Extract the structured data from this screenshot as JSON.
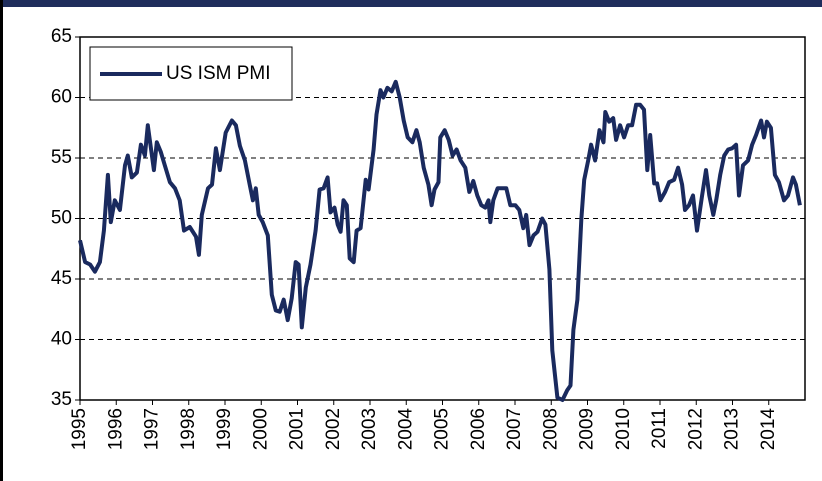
{
  "chart_data": {
    "type": "line",
    "legend": "upper left",
    "grid": true,
    "xlim": [
      1995,
      2015
    ],
    "ylim": [
      35,
      65
    ],
    "xticks": [
      1995,
      1996,
      1997,
      1998,
      1999,
      2000,
      2001,
      2002,
      2003,
      2004,
      2005,
      2006,
      2007,
      2008,
      2009,
      2010,
      2011,
      2012,
      2013,
      2014
    ],
    "yticks": [
      35,
      40,
      45,
      50,
      55,
      60,
      65
    ],
    "x": [
      1995,
      1995.14,
      1995.28,
      1995.41,
      1995.55,
      1995.66,
      1995.77,
      1995.85,
      1995.96,
      1996.1,
      1996.24,
      1996.32,
      1996.43,
      1996.57,
      1996.68,
      1996.79,
      1996.87,
      1996.96,
      1997.04,
      1997.12,
      1997.23,
      1997.34,
      1997.48,
      1997.62,
      1997.75,
      1997.87,
      1998.03,
      1998.2,
      1998.28,
      1998.36,
      1998.53,
      1998.64,
      1998.75,
      1998.86,
      1999.02,
      1999.19,
      1999.3,
      1999.41,
      1999.55,
      1999.68,
      1999.77,
      1999.85,
      1999.93,
      2000.04,
      2000.18,
      2000.29,
      2000.4,
      2000.51,
      2000.62,
      2000.73,
      2000.84,
      2000.95,
      2001.03,
      2001.12,
      2001.23,
      2001.36,
      2001.5,
      2001.61,
      2001.72,
      2001.83,
      2001.91,
      2002.02,
      2002.11,
      2002.19,
      2002.27,
      2002.36,
      2002.44,
      2002.55,
      2002.63,
      2002.74,
      2002.88,
      2002.96,
      2003.1,
      2003.18,
      2003.29,
      2003.37,
      2003.48,
      2003.6,
      2003.71,
      2003.82,
      2003.93,
      2004.04,
      2004.17,
      2004.28,
      2004.37,
      2004.48,
      2004.61,
      2004.7,
      2004.78,
      2004.89,
      2004.94,
      2005.06,
      2005.17,
      2005.28,
      2005.39,
      2005.5,
      2005.63,
      2005.74,
      2005.85,
      2005.96,
      2006.07,
      2006.18,
      2006.27,
      2006.32,
      2006.4,
      2006.52,
      2006.63,
      2006.76,
      2006.87,
      2007.01,
      2007.12,
      2007.23,
      2007.31,
      2007.4,
      2007.51,
      2007.62,
      2007.75,
      2007.84,
      2007.95,
      2008.03,
      2008.17,
      2008.31,
      2008.44,
      2008.53,
      2008.61,
      2008.72,
      2008.83,
      2008.91,
      2009.02,
      2009.1,
      2009.21,
      2009.33,
      2009.44,
      2009.49,
      2009.6,
      2009.71,
      2009.79,
      2009.9,
      2010.01,
      2010.12,
      2010.23,
      2010.34,
      2010.45,
      2010.56,
      2010.65,
      2010.73,
      2010.84,
      2010.92,
      2011.01,
      2011.14,
      2011.25,
      2011.39,
      2011.5,
      2011.61,
      2011.69,
      2011.8,
      2011.91,
      2012.02,
      2012.16,
      2012.27,
      2012.36,
      2012.47,
      2012.55,
      2012.66,
      2012.77,
      2012.88,
      2012.99,
      2013.1,
      2013.18,
      2013.29,
      2013.43,
      2013.54,
      2013.65,
      2013.79,
      2013.87,
      2013.95,
      2014.06,
      2014.17,
      2014.28,
      2014.42,
      2014.53,
      2014.67,
      2014.75,
      2014.86
    ],
    "series": [
      {
        "name": "US ISM PMI",
        "color": "#1a2a5e",
        "values": [
          48.2,
          46.4,
          46.2,
          45.6,
          46.4,
          49,
          53.6,
          49.7,
          51.5,
          50.7,
          54.4,
          55.2,
          53.4,
          53.8,
          56.1,
          55.2,
          57.7,
          55.7,
          54,
          56.3,
          55.5,
          54.4,
          53,
          52.5,
          51.5,
          49,
          49.3,
          48.5,
          47,
          50.3,
          52.5,
          52.8,
          55.8,
          54,
          57.1,
          58.1,
          57.7,
          56,
          54.8,
          52.8,
          51.5,
          52.5,
          50.3,
          49.7,
          48.6,
          43.7,
          42.4,
          42.3,
          43.3,
          41.6,
          43.4,
          46.4,
          46.2,
          41,
          44.3,
          46.2,
          49,
          52.4,
          52.5,
          53.4,
          50.5,
          50.9,
          49.5,
          48.9,
          51.5,
          51.1,
          46.7,
          46.4,
          49,
          49.2,
          53.2,
          52.4,
          55.7,
          58.6,
          60.6,
          60,
          60.8,
          60.5,
          61.3,
          60,
          58.1,
          56.7,
          56.3,
          57.3,
          56.3,
          54.2,
          52.8,
          51.1,
          52.4,
          53,
          56.7,
          57.3,
          56.5,
          55.2,
          55.7,
          54.8,
          54.2,
          52.2,
          53.1,
          51.9,
          51.1,
          50.9,
          51.5,
          49.7,
          51.5,
          52.5,
          52.5,
          52.5,
          51.1,
          51.1,
          50.7,
          49.2,
          50.3,
          47.8,
          48.6,
          48.9,
          50,
          49.5,
          45.8,
          39.1,
          35.2,
          35,
          35.8,
          36.2,
          40.8,
          43.3,
          49.9,
          53.2,
          54.8,
          56.1,
          54.8,
          57.3,
          56.3,
          58.8,
          58,
          58.3,
          56.5,
          57.7,
          56.7,
          57.7,
          57.7,
          59.4,
          59.4,
          59,
          54,
          56.9,
          52.9,
          52.9,
          51.5,
          52.2,
          53,
          53.2,
          54.2,
          52.8,
          50.7,
          51.1,
          51.9,
          49,
          51.9,
          54,
          51.9,
          50.3,
          51.5,
          53.6,
          55.2,
          55.7,
          55.8,
          56.1,
          51.9,
          54.4,
          54.8,
          56.1,
          56.9,
          58.1,
          56.7,
          58,
          57.5,
          53.6,
          53,
          51.5,
          51.9,
          53.4,
          52.8,
          51.1
        ]
      }
    ]
  }
}
